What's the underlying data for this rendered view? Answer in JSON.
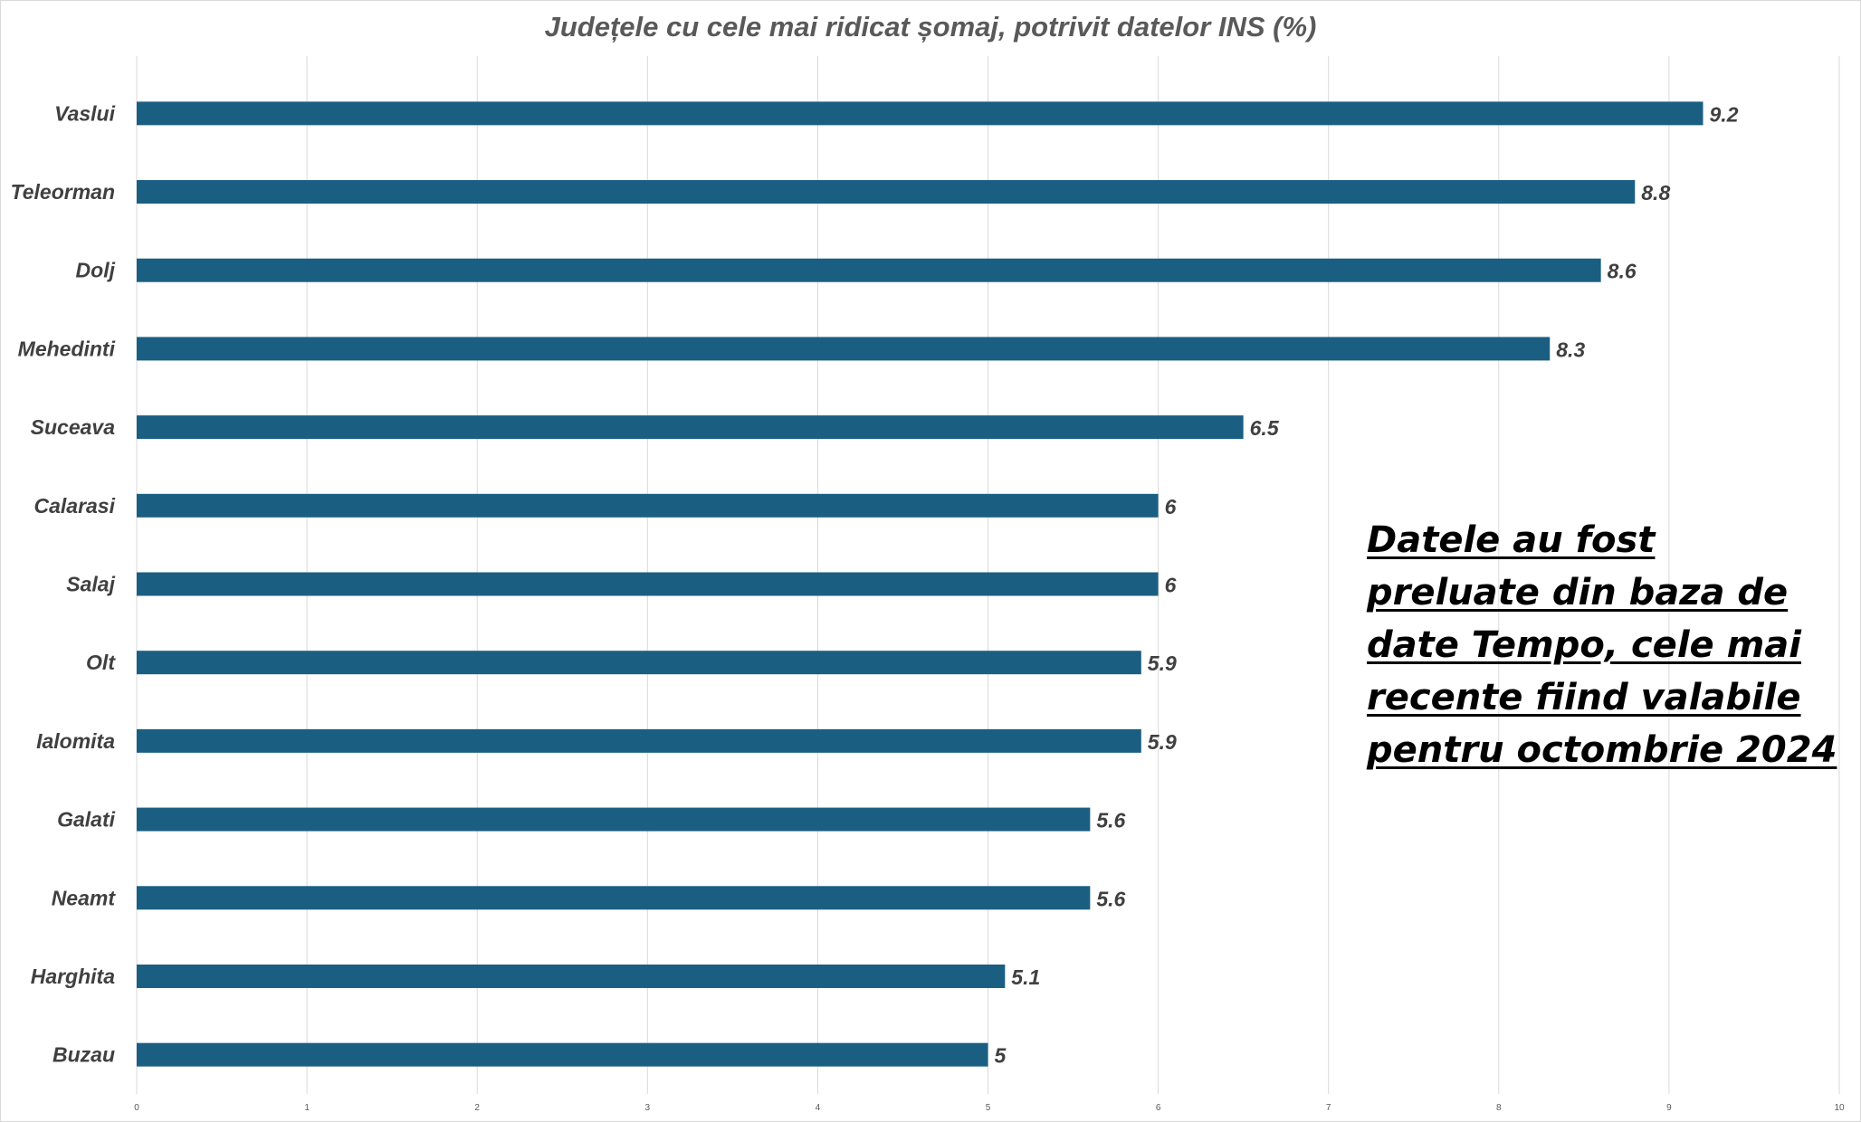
{
  "chart_data": {
    "type": "bar",
    "orientation": "horizontal",
    "title": "Județele cu cele mai ridicat șomaj, potrivit datelor INS  (%)",
    "categories": [
      "Vaslui",
      "Teleorman",
      "Dolj",
      "Mehedinti",
      "Suceava",
      "Calarasi",
      "Salaj",
      "Olt",
      "Ialomita",
      "Galati",
      "Neamt",
      "Harghita",
      "Buzau"
    ],
    "values": [
      9.2,
      8.8,
      8.6,
      8.3,
      6.5,
      6,
      6,
      5.9,
      5.9,
      5.6,
      5.6,
      5.1,
      5
    ],
    "data_labels": [
      "9.2",
      "8.8",
      "8.6",
      "8.3",
      "6.5",
      "6",
      "6",
      "5.9",
      "5.9",
      "5.6",
      "5.6",
      "5.1",
      "5"
    ],
    "xlim": [
      0,
      10
    ],
    "xticks": [
      "0",
      "1",
      "2",
      "3",
      "4",
      "5",
      "6",
      "7",
      "8",
      "9",
      "10"
    ],
    "grid": "vertical",
    "legend": "none",
    "bar_color": "#1a5f82",
    "annotation": "Datele au fost preluate din baza de date Tempo, cele mai recente fiind valabile pentru octombrie 2024"
  },
  "colors": {
    "bar": "#1a5f82",
    "grid": "#d9d9d9",
    "label_text": "#404040",
    "title_text": "#595959"
  }
}
